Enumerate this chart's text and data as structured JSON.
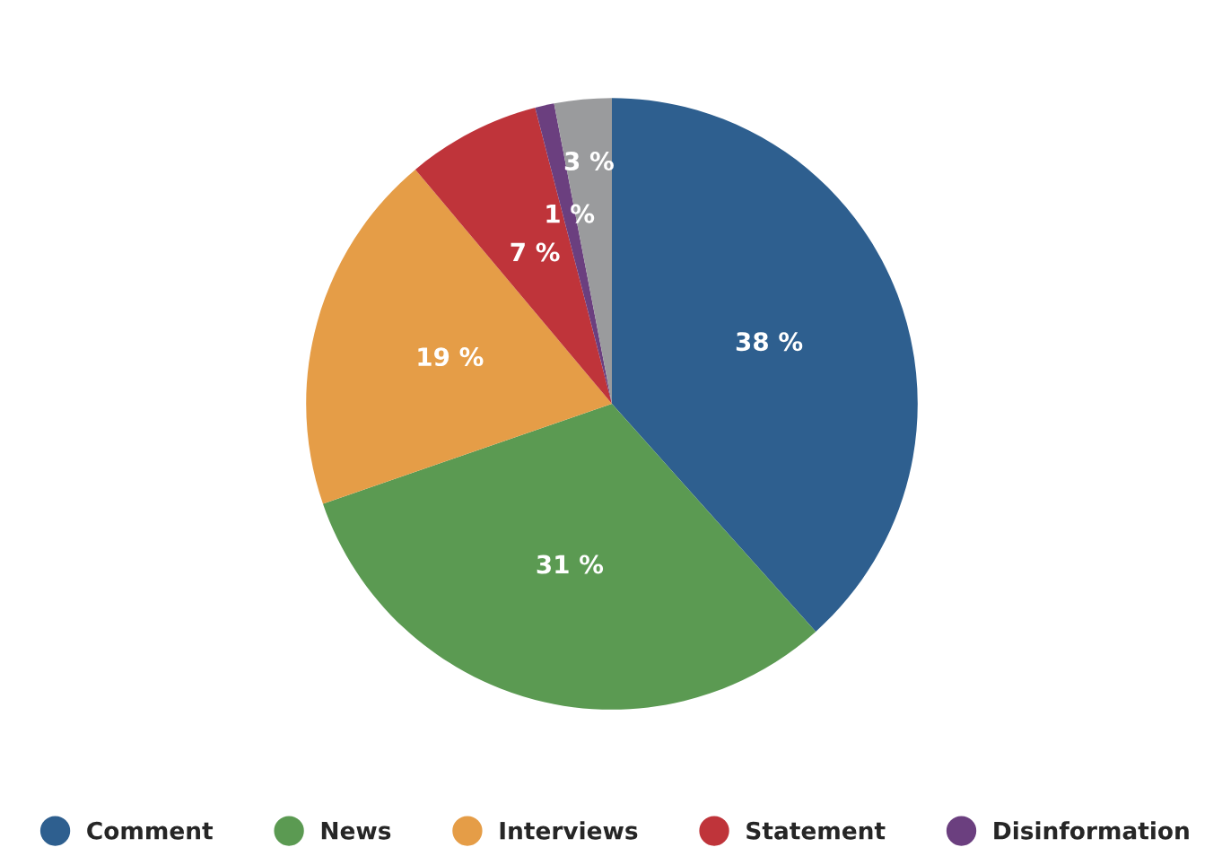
{
  "chart_data": {
    "type": "pie",
    "categories": [
      "Comment",
      "News",
      "Interviews",
      "Statement",
      "Disinformation",
      null
    ],
    "values": [
      38,
      31,
      19,
      7,
      1,
      3
    ],
    "colors": [
      "#2e5f8f",
      "#5b9a52",
      "#e59d47",
      "#bf343a",
      "#6b3f7f",
      "#9a9b9d"
    ],
    "value_labels": [
      "38 %",
      "31 %",
      "19 %",
      "7 %",
      "1 %",
      "3 %"
    ],
    "legend": "bottom"
  }
}
